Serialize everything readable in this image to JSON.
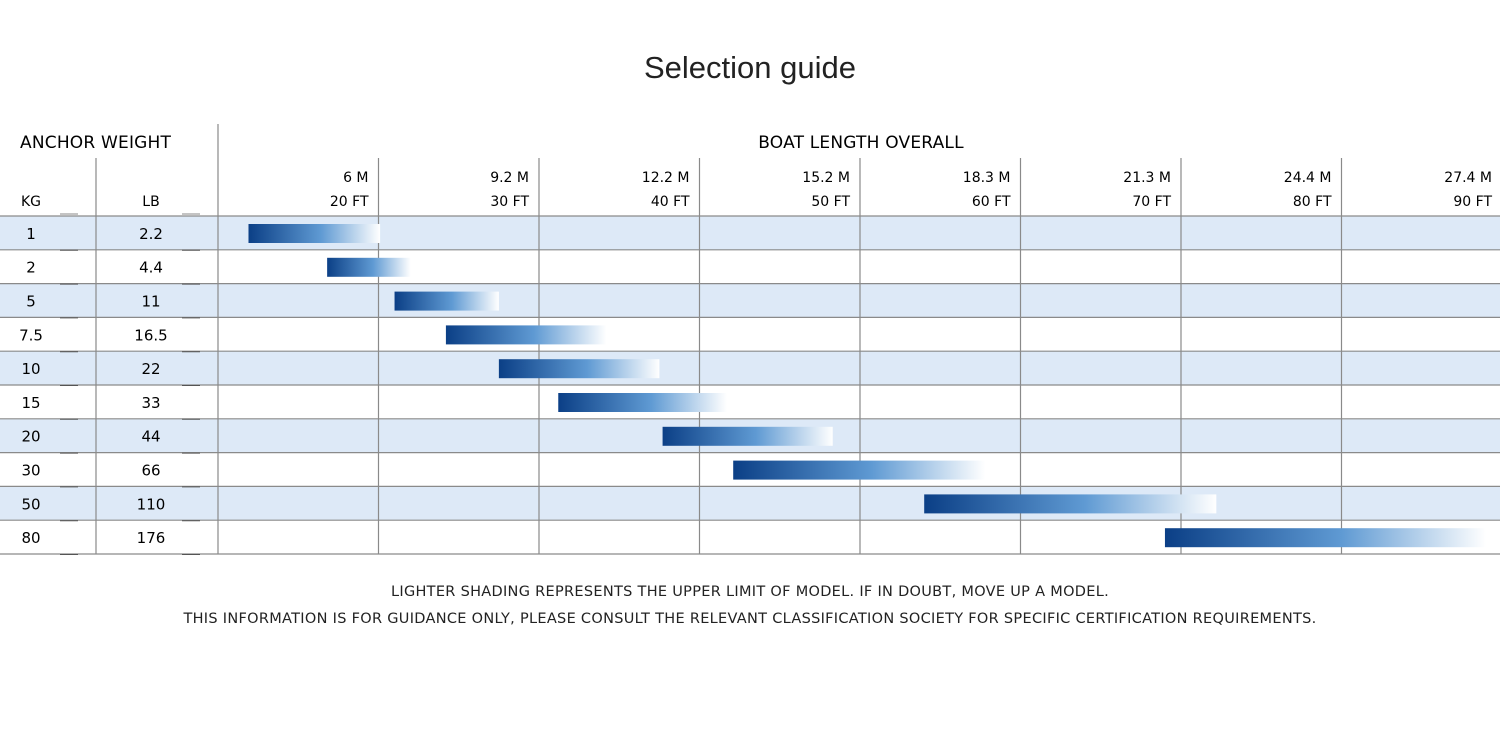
{
  "title": "Selection guide",
  "left_header": "ANCHOR WEIGHT",
  "right_header": "BOAT LENGTH OVERALL",
  "unit_kg": "KG",
  "unit_lb": "LB",
  "columns": [
    {
      "m": "6 M",
      "ft": "20 FT"
    },
    {
      "m": "9.2 M",
      "ft": "30 FT"
    },
    {
      "m": "12.2 M",
      "ft": "40 FT"
    },
    {
      "m": "15.2 M",
      "ft": "50 FT"
    },
    {
      "m": "18.3 M",
      "ft": "60 FT"
    },
    {
      "m": "21.3 M",
      "ft": "70 FT"
    },
    {
      "m": "24.4 M",
      "ft": "80 FT"
    },
    {
      "m": "27.4 M",
      "ft": "90 FT"
    }
  ],
  "rows": [
    {
      "kg": "1",
      "lb": "2.2"
    },
    {
      "kg": "2",
      "lb": "4.4"
    },
    {
      "kg": "5",
      "lb": "11"
    },
    {
      "kg": "7.5",
      "lb": "16.5"
    },
    {
      "kg": "10",
      "lb": "22"
    },
    {
      "kg": "15",
      "lb": "33"
    },
    {
      "kg": "20",
      "lb": "44"
    },
    {
      "kg": "30",
      "lb": "66"
    },
    {
      "kg": "50",
      "lb": "110"
    },
    {
      "kg": "80",
      "lb": "176"
    }
  ],
  "notes": [
    "LIGHTER SHADING REPRESENTS THE UPPER LIMIT OF MODEL. IF IN DOUBT, MOVE UP A MODEL.",
    "THIS INFORMATION IS FOR GUIDANCE ONLY, PLEASE CONSULT THE RELEVANT CLASSIFICATION SOCIETY FOR SPECIFIC CERTIFICATION REQUIREMENTS."
  ],
  "colors": {
    "bar_dark": "#0b3f86",
    "bar_mid": "#5f9ad3",
    "bar_light": "#ffffff",
    "stripe": "#dde9f7",
    "grid": "#8a8a8a"
  },
  "chart_data": {
    "type": "bar",
    "orientation": "horizontal-range",
    "categories": [
      "1",
      "2",
      "5",
      "7.5",
      "10",
      "15",
      "20",
      "30",
      "50",
      "80"
    ],
    "x_unit": "FT",
    "x_ticks": [
      20,
      30,
      40,
      50,
      60,
      70,
      80,
      90
    ],
    "xlim": [
      10,
      100
    ],
    "series": [
      {
        "values": [
          [
            11.9,
            20.1
          ],
          [
            16.8,
            22.0
          ],
          [
            21.0,
            27.5
          ],
          [
            24.2,
            34.2
          ],
          [
            27.5,
            37.5
          ],
          [
            31.2,
            41.7
          ],
          [
            37.7,
            48.3
          ],
          [
            42.1,
            57.8
          ],
          [
            54.0,
            72.2
          ],
          [
            69.0,
            89.0
          ]
        ]
      }
    ]
  }
}
